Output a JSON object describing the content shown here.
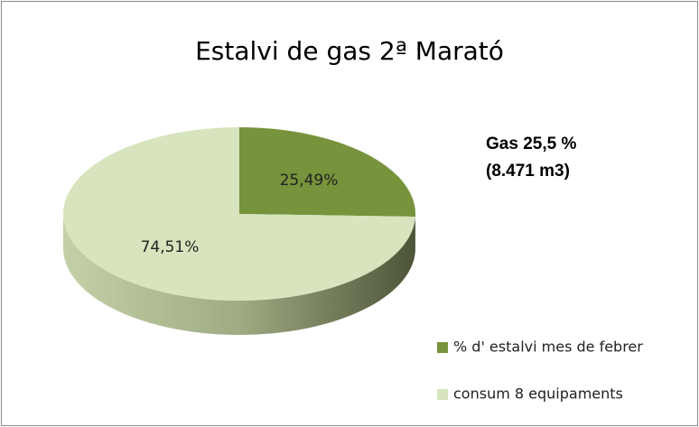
{
  "chart_data": {
    "type": "pie3d",
    "title": "Estalvi de gas 2ª Marató",
    "categories": [
      "% d' estalvi mes de febrer",
      "consum 8 equipaments"
    ],
    "values": [
      25.49,
      74.51
    ],
    "value_labels": [
      "25,49%",
      "74,51%"
    ],
    "colors": [
      "#77933c",
      "#d7e4bd"
    ],
    "annotations": [
      "Gas 25,5 %",
      "(8.471 m3)"
    ]
  }
}
